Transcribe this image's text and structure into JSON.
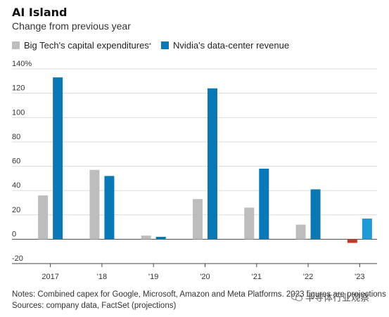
{
  "chart_data": {
    "type": "bar",
    "title": "AI Island",
    "subtitle": "Change from previous year",
    "categories": [
      "2017",
      "'18",
      "'19",
      "'20",
      "'21",
      "'22",
      "'23"
    ],
    "series": [
      {
        "name": "Big Tech's capital expenditures",
        "name_suffix": "*",
        "color": "#bdbdbd",
        "values": [
          36,
          57,
          3,
          33,
          26,
          12,
          -3
        ]
      },
      {
        "name": "Nvidia's data-center revenue",
        "color": "#0a78b4",
        "values": [
          133,
          52,
          2,
          124,
          58,
          41,
          17
        ]
      }
    ],
    "bar_highlights": [
      {
        "series": 0,
        "index": 6,
        "color": "#c0392b"
      },
      {
        "series": 1,
        "index": 6,
        "color": "#1e9ad6"
      }
    ],
    "yticks": [
      "140%",
      "120",
      "100",
      "80",
      "60",
      "40",
      "20",
      "0",
      "-20"
    ],
    "ytick_values": [
      140,
      120,
      100,
      80,
      60,
      40,
      20,
      0,
      -20
    ],
    "ylim": [
      -20,
      140
    ],
    "grid": "horizontal",
    "legend_position": "top-left"
  },
  "notes": "Notes: Combined capex for Google, Microsoft, Amazon and Meta Platforms. 2023 figures are projections",
  "sources": "Sources: company data, FactSet (projections)",
  "watermark": "半导体行业观察"
}
